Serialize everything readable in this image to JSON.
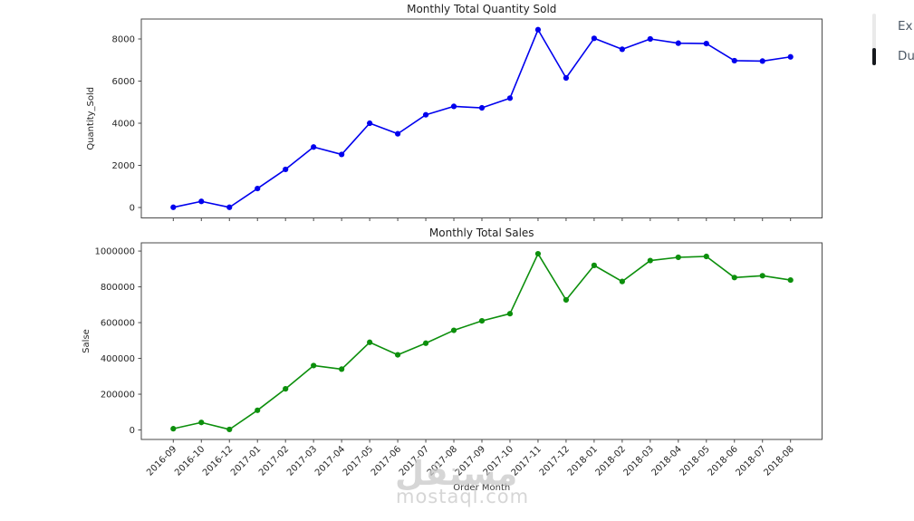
{
  "figure": {
    "background": "#ffffff",
    "frame_color": "#4a4a4a",
    "text_color": "#262626"
  },
  "watermark": {
    "arabic": "مستقل",
    "latin": "mostaql.com"
  },
  "right_panel": {
    "items": [
      {
        "label": "Ex"
      },
      {
        "label": "Du"
      }
    ]
  },
  "chart_data": [
    {
      "type": "line",
      "title": "Monthly Total Quantity Sold",
      "xlabel": "",
      "ylabel": "Quantity_Sold",
      "line_color": "#0000ee",
      "marker": "o",
      "grid": false,
      "legend": "none",
      "categories": [
        "2016-09",
        "2016-10",
        "2016-12",
        "2017-01",
        "2017-02",
        "2017-03",
        "2017-04",
        "2017-05",
        "2017-06",
        "2017-07",
        "2017-08",
        "2017-09",
        "2017-10",
        "2017-11",
        "2017-12",
        "2018-01",
        "2018-02",
        "2018-03",
        "2018-04",
        "2018-05",
        "2018-06",
        "2018-07",
        "2018-08"
      ],
      "values": [
        10,
        290,
        10,
        900,
        1810,
        2870,
        2520,
        4000,
        3500,
        4400,
        4800,
        4730,
        5190,
        8440,
        6150,
        8030,
        7510,
        8000,
        7800,
        7780,
        6970,
        6950,
        7150
      ],
      "yticks": [
        0,
        2000,
        4000,
        6000,
        8000
      ],
      "ylim": [
        -494,
        8946
      ],
      "show_x_labels": false
    },
    {
      "type": "line",
      "title": "Monthly Total Sales",
      "xlabel": "Order Month",
      "ylabel": "Salse",
      "line_color": "#0c8f0c",
      "marker": "o",
      "grid": false,
      "legend": "none",
      "categories": [
        "2016-09",
        "2016-10",
        "2016-12",
        "2017-01",
        "2017-02",
        "2017-03",
        "2017-04",
        "2017-05",
        "2017-06",
        "2017-07",
        "2017-08",
        "2017-09",
        "2017-10",
        "2017-11",
        "2017-12",
        "2018-01",
        "2018-02",
        "2018-03",
        "2018-04",
        "2018-05",
        "2018-06",
        "2018-07",
        "2018-08"
      ],
      "values": [
        7000,
        42000,
        3000,
        110000,
        230000,
        360000,
        340000,
        490000,
        420000,
        485000,
        557000,
        610000,
        650000,
        985000,
        727000,
        920000,
        830000,
        947000,
        965000,
        970000,
        852000,
        862000,
        838000
      ],
      "yticks": [
        0,
        200000,
        400000,
        600000,
        800000,
        1000000
      ],
      "ylim": [
        -53000,
        1046000
      ],
      "show_x_labels": true
    }
  ]
}
